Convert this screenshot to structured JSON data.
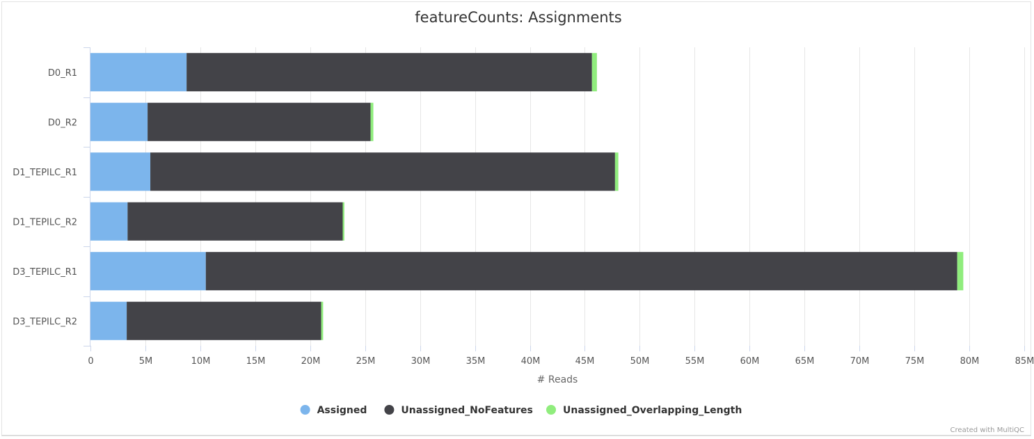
{
  "chart_data": {
    "type": "bar",
    "orientation": "horizontal",
    "stacked": true,
    "title": "featureCounts: Assignments",
    "xlabel": "# Reads",
    "ylabel": "",
    "xlim": [
      0,
      85000000
    ],
    "x_ticks": [
      {
        "value": 0,
        "label": "0"
      },
      {
        "value": 5000000,
        "label": "5M"
      },
      {
        "value": 10000000,
        "label": "10M"
      },
      {
        "value": 15000000,
        "label": "15M"
      },
      {
        "value": 20000000,
        "label": "20M"
      },
      {
        "value": 25000000,
        "label": "25M"
      },
      {
        "value": 30000000,
        "label": "30M"
      },
      {
        "value": 35000000,
        "label": "35M"
      },
      {
        "value": 40000000,
        "label": "40M"
      },
      {
        "value": 45000000,
        "label": "45M"
      },
      {
        "value": 50000000,
        "label": "50M"
      },
      {
        "value": 55000000,
        "label": "55M"
      },
      {
        "value": 60000000,
        "label": "60M"
      },
      {
        "value": 65000000,
        "label": "65M"
      },
      {
        "value": 70000000,
        "label": "70M"
      },
      {
        "value": 75000000,
        "label": "75M"
      },
      {
        "value": 80000000,
        "label": "80M"
      },
      {
        "value": 85000000,
        "label": "85M"
      }
    ],
    "categories": [
      "D0_R1",
      "D0_R2",
      "D1_TEPILC_R1",
      "D1_TEPILC_R2",
      "D3_TEPILC_R1",
      "D3_TEPILC_R2"
    ],
    "series": [
      {
        "name": "Assigned",
        "color": "#7cb5ec",
        "values": [
          8750000,
          5200000,
          5450000,
          3380000,
          10500000,
          3300000
        ]
      },
      {
        "name": "Unassigned_NoFeatures",
        "color": "#434348",
        "values": [
          36900000,
          20300000,
          42300000,
          19580000,
          68400000,
          17700000
        ]
      },
      {
        "name": "Unassigned_Overlapping_Length",
        "color": "#90ed7d",
        "values": [
          450000,
          250000,
          300000,
          150000,
          550000,
          180000
        ]
      }
    ],
    "grid": true,
    "legend_position": "bottom-center"
  },
  "credit": "Created with MultiQC"
}
